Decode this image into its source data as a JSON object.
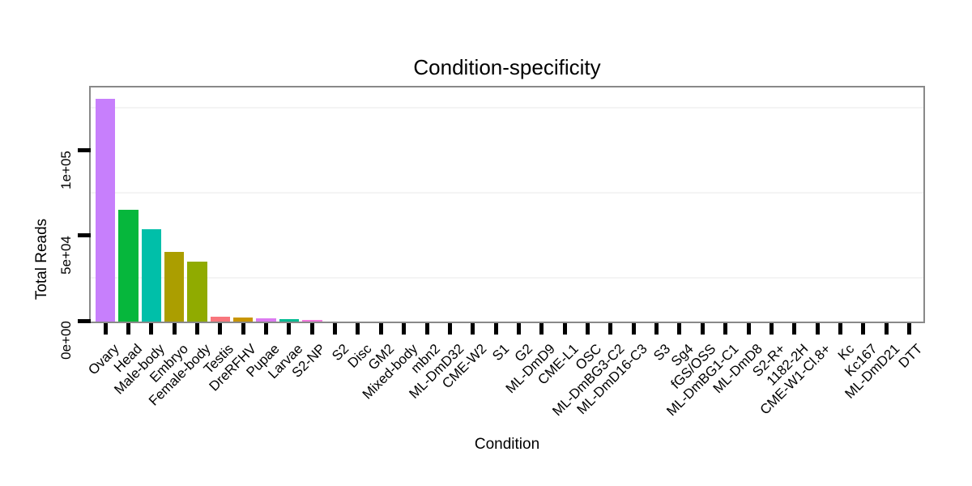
{
  "page": {
    "background": "#FFFFFF"
  },
  "chart_data": {
    "type": "bar",
    "title": "Condition-specificity",
    "xlabel": "Condition",
    "ylabel": "Total Reads",
    "ylim": [
      0,
      137000
    ],
    "grid": "horizontal minor gridlines only, very light gray",
    "legend": "none",
    "panel_border_color": "#898989",
    "tick_color": "#000000",
    "yticks": [
      {
        "label": "0e+00",
        "value": 0
      },
      {
        "label": "5e+04",
        "value": 50000
      },
      {
        "label": "1e+05",
        "value": 100000
      }
    ],
    "minor_gridlines": [
      25000,
      75000,
      125000
    ],
    "categories": [
      "Ovary",
      "Head",
      "Male-body",
      "Embryo",
      "Female-body",
      "Testis",
      "DreRFHV",
      "Pupae",
      "Larvae",
      "S2-NP",
      "S2",
      "Disc",
      "GM2",
      "Mixed-body",
      "mbn2",
      "ML-DmD32",
      "CME-W2",
      "S1",
      "G2",
      "ML-DmD9",
      "CME-L1",
      "OSC",
      "ML-DmBG3-C2",
      "ML-DmD16-C3",
      "S3",
      "Sg4",
      "fGS/OSS",
      "ML-DmBG1-C1",
      "ML-DmD8",
      "S2-R+",
      "1182-2H",
      "CME-W1-Cl.8+",
      "Kc",
      "Kc167",
      "ML-DmD21",
      "DTT"
    ],
    "values": [
      130500,
      65200,
      53700,
      40300,
      34800,
      2600,
      2000,
      1400,
      900,
      650,
      0,
      0,
      0,
      0,
      0,
      0,
      0,
      0,
      0,
      0,
      0,
      0,
      0,
      0,
      0,
      0,
      0,
      0,
      0,
      0,
      0,
      0,
      0,
      0,
      0,
      0
    ],
    "colors": [
      "#C77FFC",
      "#06B73C",
      "#00BFA9",
      "#AB9E00",
      "#90AB00",
      "#F8767D",
      "#C89500",
      "#DC7BF1",
      "#00BB92",
      "#F279DD",
      null,
      null,
      null,
      null,
      null,
      null,
      null,
      null,
      null,
      null,
      null,
      null,
      null,
      null,
      null,
      null,
      null,
      null,
      null,
      null,
      null,
      null,
      null,
      null,
      null,
      null
    ]
  }
}
